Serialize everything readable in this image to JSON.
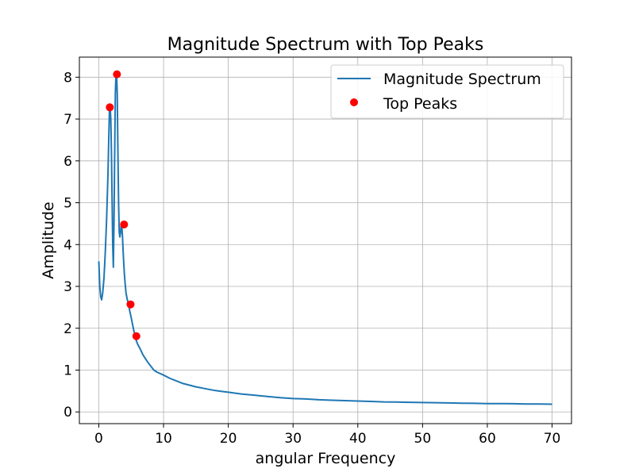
{
  "chart_data": {
    "type": "line",
    "title": "Magnitude Spectrum with Top Peaks",
    "xlabel": "angular Frequency",
    "ylabel": "Amplitude",
    "xlim": [
      -3,
      73
    ],
    "ylim": [
      -0.28,
      8.48
    ],
    "xticks": [
      0,
      10,
      20,
      30,
      40,
      50,
      60,
      70
    ],
    "yticks": [
      0,
      1,
      2,
      3,
      4,
      5,
      6,
      7,
      8
    ],
    "grid": true,
    "legend": {
      "position": "top-right",
      "entries": [
        "Magnitude Spectrum",
        "Top Peaks"
      ]
    },
    "series": [
      {
        "name": "Magnitude Spectrum",
        "kind": "line",
        "color": "#1f77b4",
        "x": [
          0,
          0.15,
          0.3,
          0.45,
          0.6,
          0.8,
          1.0,
          1.2,
          1.4,
          1.55,
          1.65,
          1.75,
          1.85,
          1.95,
          2.05,
          2.15,
          2.25,
          2.35,
          2.45,
          2.55,
          2.65,
          2.75,
          2.85,
          2.95,
          3.05,
          3.15,
          3.25,
          3.35,
          3.45,
          3.55,
          3.65,
          3.75,
          3.85,
          3.95,
          4.05,
          4.2,
          4.4,
          4.6,
          4.8,
          5.0,
          5.2,
          5.4,
          5.6,
          5.8,
          6.0,
          6.2,
          6.4,
          6.6,
          6.8,
          7.0,
          7.3,
          7.6,
          8.0,
          8.5,
          9.0,
          10,
          11,
          12,
          13,
          14,
          15,
          16,
          17,
          18,
          19,
          20,
          22,
          24,
          26,
          28,
          30,
          32,
          34,
          36,
          38,
          40,
          42,
          44,
          46,
          48,
          50,
          52,
          54,
          56,
          58,
          60,
          62,
          64,
          66,
          68,
          70
        ],
        "y": [
          3.6,
          3.0,
          2.75,
          2.68,
          2.85,
          3.2,
          3.8,
          4.6,
          5.6,
          6.6,
          7.2,
          7.28,
          7.0,
          6.2,
          5.1,
          4.0,
          3.46,
          4.5,
          6.2,
          7.6,
          8.05,
          8.07,
          7.6,
          6.3,
          5.0,
          4.3,
          4.18,
          4.27,
          4.45,
          4.45,
          4.2,
          3.85,
          3.55,
          3.3,
          3.1,
          2.85,
          2.68,
          2.57,
          2.4,
          2.25,
          2.1,
          1.95,
          1.82,
          1.7,
          1.62,
          1.56,
          1.5,
          1.44,
          1.37,
          1.32,
          1.25,
          1.18,
          1.1,
          1.0,
          0.95,
          0.88,
          0.8,
          0.74,
          0.68,
          0.64,
          0.6,
          0.57,
          0.54,
          0.51,
          0.49,
          0.47,
          0.43,
          0.4,
          0.37,
          0.34,
          0.32,
          0.31,
          0.29,
          0.28,
          0.27,
          0.26,
          0.25,
          0.24,
          0.235,
          0.23,
          0.225,
          0.22,
          0.215,
          0.21,
          0.205,
          0.2,
          0.2,
          0.195,
          0.19,
          0.19,
          0.185
        ]
      },
      {
        "name": "Top Peaks",
        "kind": "scatter",
        "color": "#ff0000",
        "x": [
          1.7,
          2.8,
          3.9,
          4.9,
          5.8
        ],
        "y": [
          7.28,
          8.07,
          4.48,
          2.57,
          1.81
        ]
      }
    ]
  }
}
